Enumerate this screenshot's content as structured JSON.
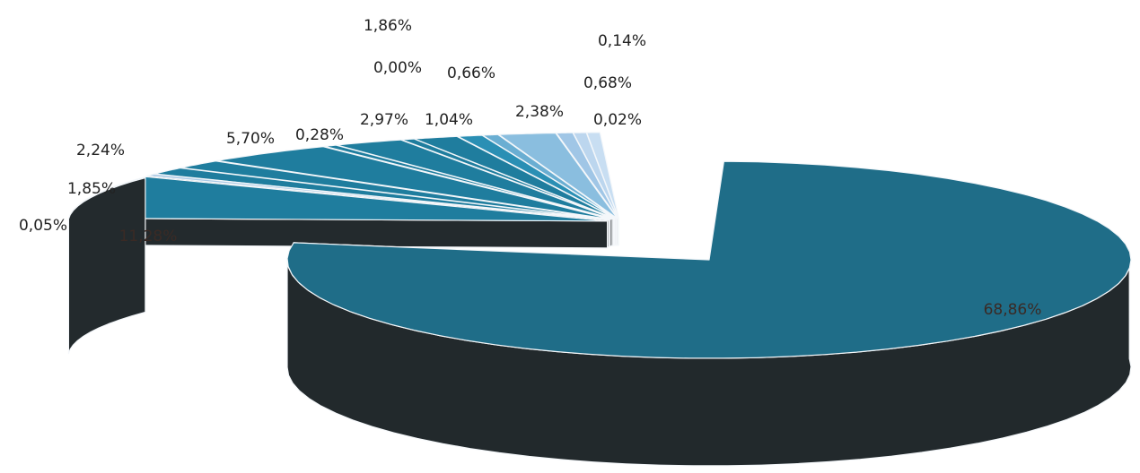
{
  "chart_data": {
    "type": "pie",
    "style": "3d-exploded",
    "legend": "none",
    "slices": [
      {
        "label": "68,86%",
        "value": 68.86,
        "color": "#1e6b86",
        "color_top": "#1f6d88",
        "color_side": "#22292c"
      },
      {
        "label": "11,28%",
        "value": 11.28,
        "color": "#1f7d9e",
        "color_top": "#1f7d9e",
        "color_side": "#232a2d"
      },
      {
        "label": "0,05%",
        "value": 0.05,
        "color": "#a8c8e4",
        "color_top": "#a8c8e4",
        "color_side": "#2b3236"
      },
      {
        "label": "1,85%",
        "value": 1.85,
        "color": "#1f7d9e",
        "color_top": "#1f7d9e",
        "color_side": "#232a2d"
      },
      {
        "label": "2,24%",
        "value": 2.24,
        "color": "#1f7d9e",
        "color_top": "#1f7d9e",
        "color_side": "#232a2d"
      },
      {
        "label": "5,70%",
        "value": 5.7,
        "color": "#1f7d9e",
        "color_top": "#1f7d9e",
        "color_side": "#232a2d"
      },
      {
        "label": "0,28%",
        "value": 0.28,
        "color": "#1f7d9e",
        "color_top": "#1f7d9e",
        "color_side": "#232a2d"
      },
      {
        "label": "2,97%",
        "value": 2.97,
        "color": "#1f7d9e",
        "color_top": "#1f7d9e",
        "color_side": "#232a2d"
      },
      {
        "label": "0,00%",
        "value": 0.0,
        "color": "#1f7d9e",
        "color_top": "#1f7d9e",
        "color_side": "#232a2d"
      },
      {
        "label": "1,86%",
        "value": 1.86,
        "color": "#1f7d9e",
        "color_top": "#1f7d9e",
        "color_side": "#232a2d"
      },
      {
        "label": "1,04%",
        "value": 1.04,
        "color": "#2a8fb4",
        "color_top": "#2a8fb4",
        "color_side": "#242b2e"
      },
      {
        "label": "0,66%",
        "value": 0.66,
        "color": "#6aaed2",
        "color_top": "#6aaed2",
        "color_side": "#272e32"
      },
      {
        "label": "2,38%",
        "value": 2.38,
        "color": "#8abedf",
        "color_top": "#8abedf",
        "color_side": "#293034"
      },
      {
        "label": "0,68%",
        "value": 0.68,
        "color": "#a0c6e6",
        "color_top": "#a0c6e6",
        "color_side": "#2a3135"
      },
      {
        "label": "0,14%",
        "value": 0.14,
        "color": "#bcd6ee",
        "color_top": "#bcd6ee",
        "color_side": "#2c3337"
      },
      {
        "label": "0,02%",
        "value": 0.02,
        "color": "#c8def2",
        "color_top": "#c8def2",
        "color_side": "#2d3438"
      }
    ]
  }
}
